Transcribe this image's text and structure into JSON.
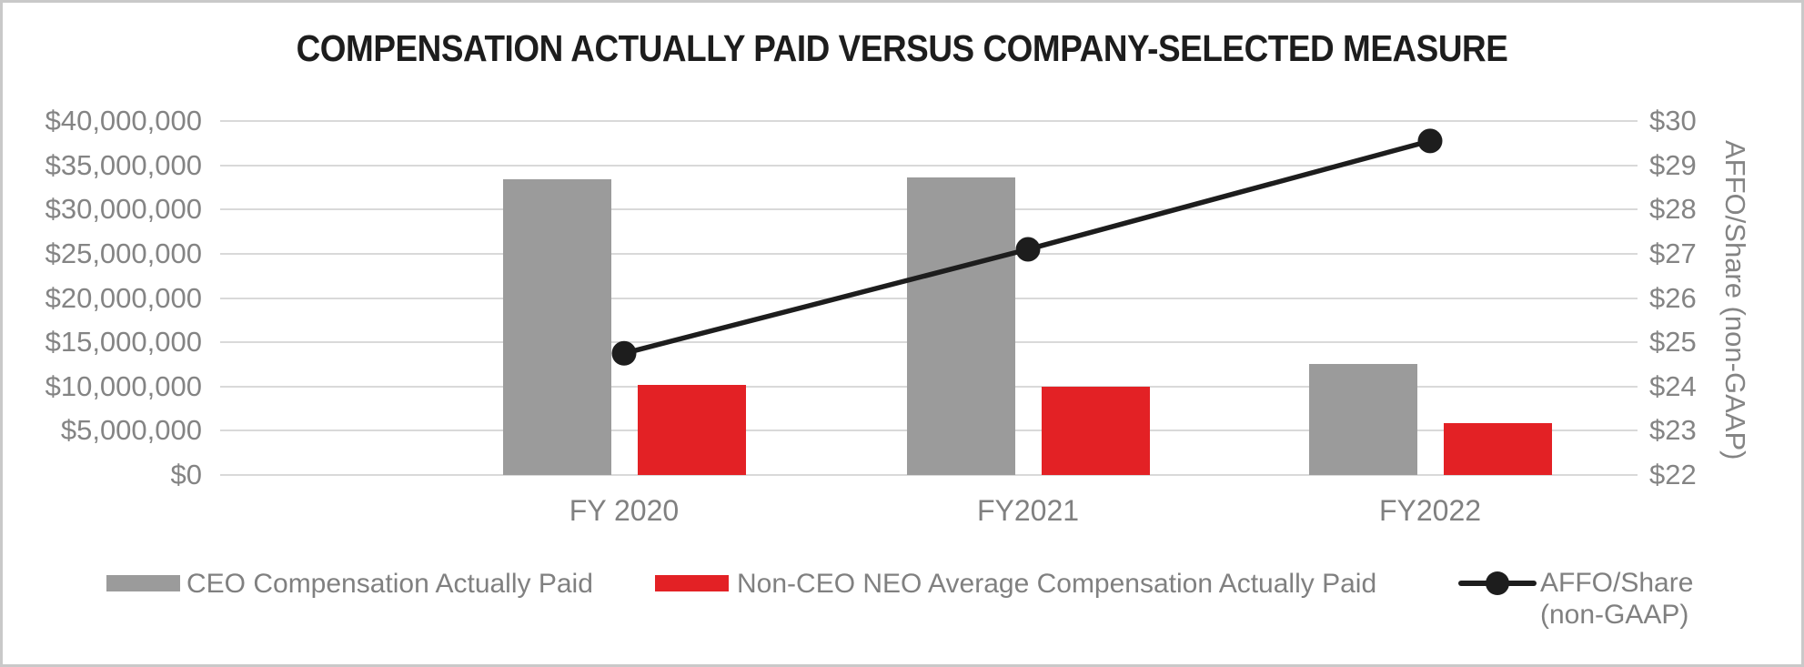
{
  "title": "COMPENSATION ACTUALLY PAID VERSUS COMPANY-SELECTED MEASURE",
  "chart_data": {
    "type": "combo-bar-line",
    "categories": [
      "FY 2020",
      "FY2021",
      "FY2022"
    ],
    "series": [
      {
        "name": "CEO Compensation Actually Paid",
        "type": "bar",
        "axis": "left",
        "color": "#9b9b9b",
        "values": [
          33400000,
          33600000,
          12550000
        ]
      },
      {
        "name": "Non-CEO NEO Average Compensation Actually Paid",
        "type": "bar",
        "axis": "left",
        "color": "#e32125",
        "values": [
          10200000,
          10000000,
          5900000
        ]
      },
      {
        "name": "AFFO/Share (non-GAAP)",
        "type": "line",
        "axis": "right",
        "color": "#1d1d1d",
        "values": [
          24.75,
          27.1,
          29.55
        ]
      }
    ],
    "left_axis": {
      "min": 0,
      "max": 40000000,
      "step": 5000000,
      "tick_labels": [
        "$40,000,000",
        "$35,000,000",
        "$30,000,000",
        "$25,000,000",
        "$20,000,000",
        "$15,000,000",
        "$10,000,000",
        "$5,000,000",
        "$0"
      ]
    },
    "right_axis": {
      "min": 22,
      "max": 30,
      "step": 1,
      "title": "AFFO/Share (non-GAAP)",
      "tick_labels": [
        "$30",
        "$29",
        "$28",
        "$27",
        "$26",
        "$25",
        "$24",
        "$23",
        "$22"
      ]
    },
    "grid": true,
    "legend_position": "bottom",
    "legend": [
      {
        "label": "CEO Compensation Actually Paid",
        "marker": "bar",
        "color": "#9b9b9b"
      },
      {
        "label": "Non-CEO NEO Average Compensation Actually Paid",
        "marker": "bar",
        "color": "#e32125"
      },
      {
        "label": "AFFO/Share (non-GAAP)",
        "label_lines": [
          "AFFO/Share",
          "(non-GAAP)"
        ],
        "marker": "line-dot",
        "color": "#1d1d1d"
      }
    ],
    "colors": {
      "grid": "#d9d9d9",
      "axis_text": "#848484",
      "title_text": "#1d1d1d",
      "background": "#ffffff",
      "border": "#c9c9c9"
    }
  }
}
